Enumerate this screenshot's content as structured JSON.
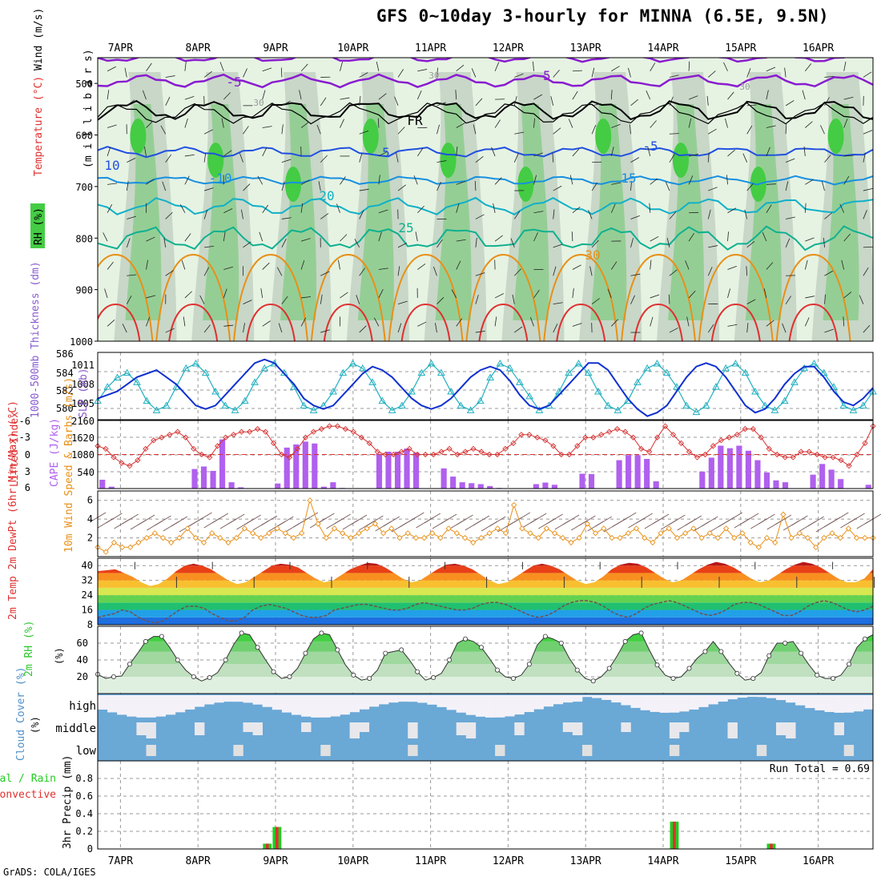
{
  "title": "GFS 0~10day 3-hourly for MINNA (6.5E, 9.5N)",
  "credit": "GrADS: COLA/IGES",
  "colors": {
    "rh_light": "#e6f3e3",
    "rh_mid": "#c4d4c4",
    "rh_dark": "#8ccc8c",
    "rh_green": "#44cc44",
    "temp_m5": "#8a1ccf",
    "temp_fr": "#000000",
    "temp_5": "#2050e0",
    "temp_10": "#1890e0",
    "temp_15": "#10b0c8",
    "temp_20": "#10b090",
    "temp_25": "#e89018",
    "temp_30": "#e03030",
    "thickness": "#20b0c0",
    "slp": "#1030d0",
    "cape": "#b060ee",
    "lifted": "#d83030",
    "wind10": "#e89018",
    "dewpt": "#705050",
    "rh2m": "#30c830",
    "cloud": "#6aa8d6",
    "total_rain": "#22cc22",
    "convective": "#e03030"
  },
  "chart_data": [
    {
      "type": "area",
      "name": "upper-air",
      "x_ticks": [
        "7APR",
        "8APR",
        "9APR",
        "10APR",
        "11APR",
        "12APR",
        "13APR",
        "14APR",
        "15APR",
        "16APR"
      ],
      "ylabel_parts": [
        "Wind (m/s)",
        "Temperature (°C)",
        "RH (%)"
      ],
      "ylabel_millibars": "(m i l l i b a r s)",
      "y_ticks": [
        "500",
        "600",
        "700",
        "800",
        "900",
        "1000"
      ],
      "ylim": [
        450,
        1000
      ],
      "isotherm_labels": [
        "-5",
        "-5",
        "FR",
        "5",
        "-5",
        "10",
        "-10",
        "15",
        "20",
        "25",
        "30",
        "30",
        "30",
        "30"
      ]
    },
    {
      "type": "line",
      "name": "thickness-slp",
      "ylabel_left": "1000-500mb Thickness (dm)",
      "ylabel_right": "SLP (mb)",
      "left_ticks": [
        "586",
        "584",
        "582",
        "580"
      ],
      "right_ticks": [
        "1011",
        "1008",
        "1005"
      ],
      "series": [
        {
          "name": "thickness",
          "values": [
            581,
            582.5,
            583.5,
            584,
            583,
            581,
            580,
            580.5,
            582.5,
            584.5,
            585,
            584,
            582,
            580.5,
            580,
            581,
            583,
            584.5,
            585,
            584,
            582.5,
            580.5,
            580,
            580.5,
            582,
            584,
            585,
            584.5,
            583,
            581,
            580,
            580.5,
            582,
            584,
            585,
            584,
            582,
            580.5,
            580,
            581,
            583.5,
            585,
            584.5,
            583,
            581.5,
            580,
            580.5,
            582,
            584,
            585,
            584,
            582,
            580.5,
            580,
            581,
            583,
            584.5,
            585,
            584,
            582.5,
            580.5,
            579.8,
            580.5,
            582.5,
            584.5,
            585,
            584,
            582,
            580.5,
            580,
            581,
            583,
            584.5,
            585,
            584,
            582.5,
            580.5,
            580,
            580.5,
            582
          ]
        },
        {
          "name": "slp",
          "values": [
            1006,
            1006.5,
            1007,
            1008,
            1009,
            1009.5,
            1010,
            1009,
            1008,
            1006.5,
            1005,
            1004.5,
            1005,
            1006.5,
            1008,
            1009.5,
            1011,
            1011.5,
            1011,
            1009.5,
            1008,
            1006,
            1005,
            1004.5,
            1005,
            1006.5,
            1008,
            1009.5,
            1010.5,
            1010,
            1009,
            1007.5,
            1006,
            1005,
            1004.5,
            1005,
            1006,
            1007.5,
            1009,
            1010,
            1010.5,
            1010,
            1008.5,
            1006.5,
            1005,
            1004.5,
            1005,
            1006.5,
            1008,
            1009.5,
            1011,
            1011,
            1010,
            1008,
            1006,
            1004.5,
            1003.5,
            1004,
            1005,
            1007,
            1009,
            1010.5,
            1011,
            1010.5,
            1009,
            1007,
            1005,
            1004,
            1004.5,
            1006,
            1008,
            1009.5,
            1010.5,
            1010.5,
            1009,
            1007,
            1005.5,
            1005,
            1006,
            1007.5
          ]
        }
      ]
    },
    {
      "type": "bar",
      "name": "cape-lifted-index",
      "ylabel_left": "Lifted Index",
      "ylabel_right": "CAPE (J/kg)",
      "left_ticks": [
        "-6",
        "-3",
        "0",
        "3",
        "6"
      ],
      "right_ticks": [
        "2160",
        "1620",
        "1080",
        "540"
      ],
      "cape": [
        280,
        60,
        0,
        0,
        0,
        0,
        0,
        0,
        0,
        0,
        620,
        700,
        560,
        1560,
        200,
        40,
        0,
        0,
        0,
        160,
        1300,
        1400,
        1490,
        1430,
        60,
        200,
        20,
        0,
        0,
        0,
        1100,
        1170,
        1170,
        1270,
        1140,
        0,
        0,
        640,
        380,
        200,
        170,
        140,
        80,
        20,
        0,
        0,
        0,
        140,
        190,
        120,
        0,
        0,
        470,
        460,
        0,
        0,
        900,
        1060,
        1060,
        940,
        230,
        0,
        0,
        0,
        0,
        540,
        980,
        1360,
        1280,
        1360,
        1200,
        900,
        510,
        260,
        200,
        0,
        0,
        440,
        780,
        600,
        300,
        0,
        0,
        120
      ],
      "lifted_index": [
        -1.5,
        -1,
        0.5,
        1.5,
        2,
        1,
        -1,
        -2.5,
        -3,
        -3.5,
        -4,
        -3,
        -1,
        0,
        0.5,
        -1.5,
        -3,
        -3.5,
        -4,
        -4,
        -4.5,
        -4,
        -2,
        0,
        0.5,
        -1,
        -3,
        -4,
        -4.5,
        -5,
        -5,
        -4.5,
        -4,
        -3,
        -2,
        -0.5,
        0,
        0,
        -0.5,
        -1,
        0,
        0,
        0,
        -0.5,
        -1,
        0,
        -0.5,
        -1,
        -0.5,
        0,
        0,
        -1,
        -2,
        -3.5,
        -3.5,
        -3,
        -2.5,
        -1.5,
        0,
        0,
        -1.5,
        -3,
        -3,
        -3.5,
        -4,
        -4.5,
        -4,
        -3,
        -1,
        -0.5,
        -3,
        -5,
        -3.5,
        -2,
        -0.5,
        0.5,
        0,
        -1.5,
        -2.5,
        -3,
        -3.5,
        -4.5,
        -4.5,
        -3,
        -1,
        0,
        0.5,
        0.5,
        -0.5,
        -0.5,
        0,
        0.5,
        0.5,
        1,
        2,
        0,
        -2,
        -5
      ]
    },
    {
      "type": "line",
      "name": "wind10m",
      "ylabel": "10m Wind Speed & Barbs (m/s)",
      "y_ticks": [
        "6",
        "4",
        "2"
      ],
      "ylim": [
        0,
        7
      ],
      "values": [
        1,
        0.5,
        1.5,
        1,
        1,
        1.5,
        2,
        2.5,
        2,
        1.5,
        2,
        3,
        2,
        1.5,
        2.5,
        2,
        1.5,
        2,
        3,
        2.5,
        2,
        2.5,
        3,
        2.5,
        2,
        2.5,
        6,
        3.5,
        2,
        3,
        2.5,
        2,
        2.5,
        3,
        3.5,
        2.5,
        3,
        2,
        2.5,
        2,
        2,
        2.5,
        2,
        3,
        2.5,
        2,
        1.5,
        2,
        2.5,
        3,
        2.5,
        5.5,
        3,
        2.5,
        2,
        3,
        2.5,
        2,
        1.5,
        2,
        3.5,
        2.5,
        3,
        2,
        2,
        2.5,
        3,
        2,
        1.5,
        2.5,
        3,
        2,
        2.5,
        3,
        2,
        2.5,
        2,
        3,
        2,
        2.5,
        1.5,
        1,
        2,
        1.5,
        4.5,
        2,
        2.5,
        2,
        1,
        2,
        2.5,
        2,
        3,
        2,
        2,
        2
      ]
    },
    {
      "type": "area",
      "name": "temp-dewpt",
      "ylabel": "2m Temp 2m DewPt (6hr Min/Max) (°C)",
      "y_ticks": [
        "40",
        "32",
        "24",
        "16",
        "8"
      ],
      "ylim": [
        8,
        44
      ],
      "temp": [
        37,
        37.5,
        38,
        36,
        34,
        31,
        29,
        30,
        33,
        37,
        40,
        41,
        40,
        38,
        35,
        32,
        30,
        31,
        34,
        37,
        40,
        41,
        40.5,
        39,
        36,
        33,
        31,
        32,
        35,
        38,
        40,
        41.5,
        41,
        39,
        36,
        33,
        31,
        32,
        35,
        38,
        40.5,
        41,
        40,
        38,
        35,
        32,
        30,
        31,
        34,
        37,
        40,
        41,
        40,
        38,
        35,
        32,
        30,
        31,
        34,
        38,
        40.5,
        41.5,
        41,
        39,
        36,
        33,
        31,
        32,
        35,
        38,
        40.5,
        42,
        41,
        39,
        36,
        33,
        31,
        32,
        35,
        38,
        40.5,
        42,
        41,
        39,
        36,
        33,
        31,
        31,
        33,
        38
      ],
      "dewpt": [
        12,
        13,
        14,
        16,
        15,
        12,
        10,
        9,
        10,
        13,
        16,
        18,
        18,
        17,
        14,
        12,
        10,
        10,
        12,
        16,
        18,
        19,
        18,
        17,
        15,
        13,
        12,
        12,
        13,
        16,
        17,
        18,
        19,
        19,
        18,
        17,
        16,
        16,
        17,
        19,
        20,
        19,
        18,
        17,
        16,
        16,
        17,
        19,
        20,
        20,
        19,
        17,
        15,
        13,
        12,
        13,
        15,
        18,
        20,
        21,
        21,
        20,
        18,
        15,
        13,
        12,
        14,
        17,
        19,
        20,
        21,
        20,
        18,
        16,
        14,
        13,
        14,
        16,
        19,
        20,
        20,
        19,
        17,
        15,
        13,
        13,
        15,
        18,
        20,
        21,
        20,
        18,
        16,
        15,
        16,
        18
      ]
    },
    {
      "type": "area",
      "name": "rh2m",
      "ylabel": "2m RH (%)",
      "y_ticks": [
        "60",
        "40",
        "20"
      ],
      "ylim": [
        0,
        80
      ],
      "values": [
        23,
        18,
        20,
        21,
        35,
        48,
        62,
        68,
        68,
        55,
        40,
        28,
        20,
        15,
        19,
        25,
        40,
        58,
        72,
        70,
        55,
        40,
        26,
        18,
        20,
        30,
        48,
        65,
        72,
        70,
        52,
        34,
        22,
        16,
        18,
        28,
        48,
        50,
        52,
        40,
        26,
        16,
        19,
        24,
        40,
        60,
        65,
        62,
        55,
        42,
        28,
        20,
        18,
        22,
        35,
        58,
        68,
        65,
        60,
        42,
        28,
        18,
        15,
        20,
        30,
        45,
        62,
        70,
        72,
        52,
        34,
        22,
        18,
        20,
        30,
        42,
        50,
        62,
        50,
        36,
        24,
        16,
        18,
        25,
        45,
        60,
        60,
        62,
        48,
        34,
        22,
        18,
        18,
        22,
        35,
        55,
        65,
        70
      ]
    },
    {
      "type": "area",
      "name": "cloud-cover",
      "ylabel": "Cloud Cover (%)",
      "levels": [
        "high",
        "middle",
        "low"
      ]
    },
    {
      "type": "bar",
      "name": "precip",
      "ylabel_parts": [
        "Total / Rain",
        "Convective",
        "3hr Precip (mm)"
      ],
      "y_ticks": [
        "0.8",
        "0.6",
        "0.4",
        "0.2",
        "0"
      ],
      "ylim": [
        0,
        1
      ],
      "run_total": "Run Total = 0.69",
      "bars": [
        {
          "x": 17.5,
          "total": 0.06,
          "conv": 0.06
        },
        {
          "x": 18.5,
          "total": 0.25,
          "conv": 0.25
        },
        {
          "x": 59.5,
          "total": 0.31,
          "conv": 0.31
        },
        {
          "x": 69.5,
          "total": 0.06,
          "conv": 0.06
        }
      ]
    }
  ]
}
